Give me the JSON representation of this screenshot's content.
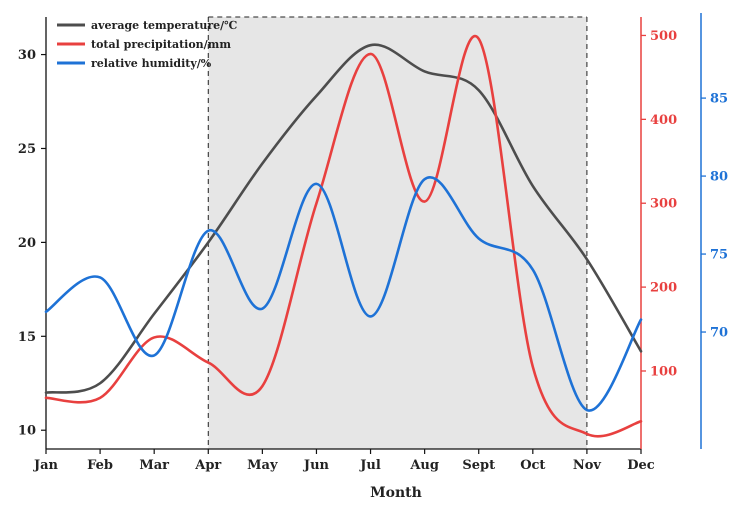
{
  "chart_data": {
    "type": "line",
    "title": "",
    "xlabel": "Month",
    "categories": [
      "Jan",
      "Feb",
      "Mar",
      "Apr",
      "May",
      "Jun",
      "Jul",
      "Aug",
      "Sept",
      "Oct",
      "Nov",
      "Dec"
    ],
    "highlight_range": [
      "Apr",
      "Nov"
    ],
    "axes": {
      "left": {
        "ylim": [
          9,
          32
        ],
        "ticks": [
          10,
          15,
          20,
          25,
          30
        ],
        "color": "#222222"
      },
      "right1": {
        "ylim": [
          7,
          522
        ],
        "ticks": [
          100,
          200,
          300,
          400,
          500
        ],
        "color": "#e8403f"
      },
      "right2": {
        "ylim": [
          62.5,
          90.2
        ],
        "ticks": [
          70,
          75,
          80,
          85
        ],
        "color": "#1e72d6"
      }
    },
    "series": [
      {
        "name": "average temperature/℃",
        "axis": "left",
        "color": "#4d4d4d",
        "values": [
          12.0,
          12.5,
          16.2,
          20.0,
          24.2,
          27.8,
          30.5,
          29.1,
          28.1,
          23.0,
          19.1,
          14.2
        ]
      },
      {
        "name": "total precipitation/mm",
        "axis": "right1",
        "color": "#e8403f",
        "values": [
          68,
          68,
          140,
          110,
          82,
          300,
          478,
          302,
          496,
          105,
          25,
          40
        ]
      },
      {
        "name": "relative humidity/%",
        "axis": "right2",
        "color": "#1e72d6",
        "values": [
          71.3,
          73.5,
          68.5,
          76.5,
          71.5,
          79.5,
          71.0,
          79.8,
          76.0,
          74.0,
          65.0,
          70.8
        ]
      }
    ]
  }
}
